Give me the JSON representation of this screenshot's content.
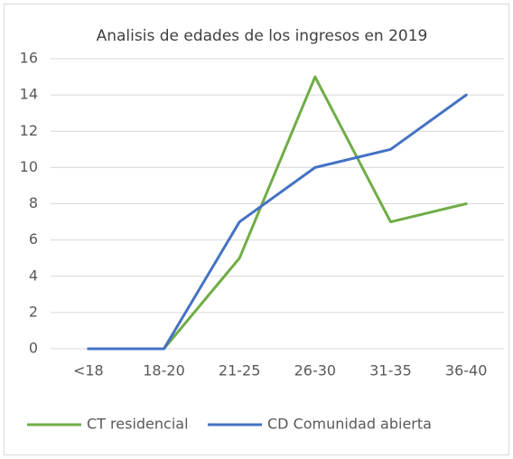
{
  "chart_data": {
    "type": "line",
    "title": "Analisis de edades de los ingresos en 2019",
    "categories": [
      "<18",
      "18-20",
      "21-25",
      "26-30",
      "31-35",
      "36-40"
    ],
    "series": [
      {
        "name": "CT residencial",
        "color": "#70ad47",
        "values": [
          0,
          0,
          5,
          15,
          7,
          8
        ]
      },
      {
        "name": "CD Comunidad abierta",
        "color": "#4472c4",
        "values": [
          0,
          0,
          7,
          10,
          11,
          14
        ]
      }
    ],
    "ylim": [
      0,
      16
    ],
    "yticks": [
      0,
      2,
      4,
      6,
      8,
      10,
      12,
      14,
      16
    ],
    "grid": true,
    "legend": "bottom"
  }
}
